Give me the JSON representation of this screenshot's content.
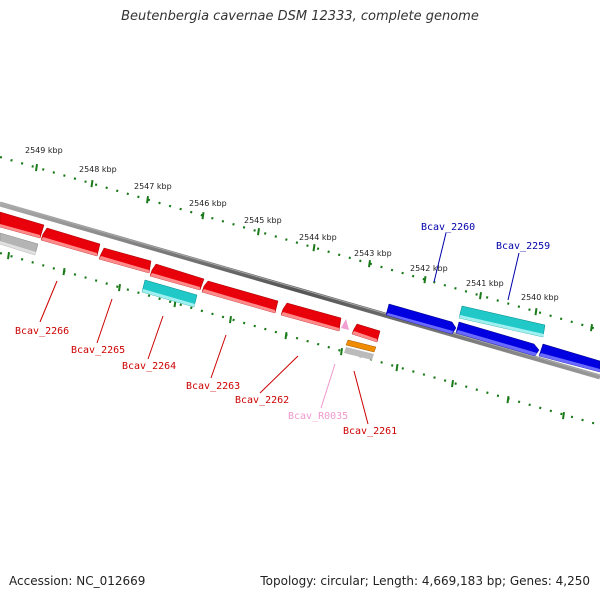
{
  "title": "Beutenbergia cavernae DSM 12333, complete genome",
  "footer": {
    "accession": "Accession: NC_012669",
    "summary": "Topology: circular; Length: 4,669,183 bp; Genes: 4,250"
  },
  "colors": {
    "cds_red": "#e8000b",
    "cds_blue": "#0000e0",
    "rna_cyan": "#20c8c8",
    "trna_orange": "#f08c00",
    "pseudo_pink": "#f0a0d0",
    "gray_gene": "#b4b4b4",
    "backbone": "#777777",
    "scale": "#1a7a1a"
  },
  "scale_labels": [
    "2549 kbp",
    "2548 kbp",
    "2547 kbp",
    "2546 kbp",
    "2545 kbp",
    "2544 kbp",
    "2543 kbp",
    "2542 kbp",
    "2541 kbp",
    "2540 kbp"
  ],
  "gene_labels": [
    {
      "text": "Bcav_2266",
      "color": "#cc0000"
    },
    {
      "text": "Bcav_2265",
      "color": "#cc0000"
    },
    {
      "text": "Bcav_2264",
      "color": "#cc0000"
    },
    {
      "text": "Bcav_2263",
      "color": "#cc0000"
    },
    {
      "text": "Bcav_2262",
      "color": "#cc0000"
    },
    {
      "text": "Bcav_R0035",
      "color": "#ee99cc"
    },
    {
      "text": "Bcav_2261",
      "color": "#cc0000"
    },
    {
      "text": "Bcav_2260",
      "color": "#0000aa"
    },
    {
      "text": "Bcav_2259",
      "color": "#0000aa"
    }
  ]
}
